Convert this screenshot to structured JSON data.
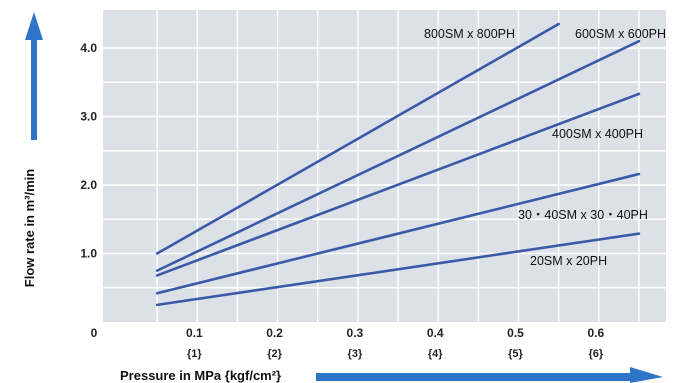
{
  "chart_data": {
    "type": "line",
    "title": "",
    "xlabel": "Pressure in MPa {kgf/cm²}",
    "ylabel": "Flow rate in m³/min",
    "xlim": [
      0,
      0.7
    ],
    "ylim": [
      0,
      4.35
    ],
    "grid": true,
    "x_ticks": [
      {
        "value": 0,
        "label": "0",
        "sub": ""
      },
      {
        "value": 0.1,
        "label": "0.1",
        "sub": "{1}"
      },
      {
        "value": 0.2,
        "label": "0.2",
        "sub": "{2}"
      },
      {
        "value": 0.3,
        "label": "0.3",
        "sub": "{3}"
      },
      {
        "value": 0.4,
        "label": "0.4",
        "sub": "{4}"
      },
      {
        "value": 0.5,
        "label": "0.5",
        "sub": "{5}"
      },
      {
        "value": 0.6,
        "label": "0.6",
        "sub": "{6}"
      }
    ],
    "y_ticks": [
      {
        "value": 1.0,
        "label": "1.0"
      },
      {
        "value": 2.0,
        "label": "2.0"
      },
      {
        "value": 3.0,
        "label": "3.0"
      },
      {
        "value": 4.0,
        "label": "4.0"
      }
    ],
    "series": [
      {
        "name": "800SM x 800PH",
        "x": [
          0.05,
          0.55
        ],
        "y": [
          1.0,
          4.35
        ]
      },
      {
        "name": "600SM x 600PH",
        "x": [
          0.05,
          0.65
        ],
        "y": [
          0.75,
          4.1
        ]
      },
      {
        "name": "400SM x 400PH",
        "x": [
          0.05,
          0.65
        ],
        "y": [
          0.68,
          3.33
        ]
      },
      {
        "name": "30・40SM x 30・40PH",
        "x": [
          0.05,
          0.65
        ],
        "y": [
          0.42,
          2.16
        ]
      },
      {
        "name": "20SM x 20PH",
        "x": [
          0.05,
          0.65
        ],
        "y": [
          0.25,
          1.29
        ]
      }
    ],
    "colors": {
      "plot_bg": "#dce1e8",
      "grid": "#ffffff",
      "line": "#3a5aa8",
      "arrow": "#2e74c8"
    }
  }
}
